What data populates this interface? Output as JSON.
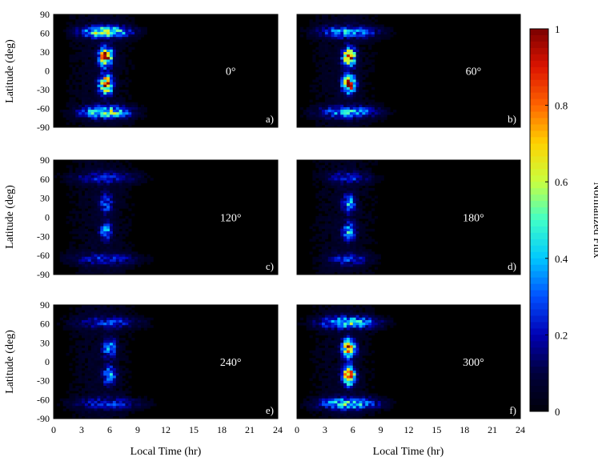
{
  "chart_data": {
    "type": "heatmap",
    "xlabel": "Local Time (hr)",
    "ylabel": "Latitude (deg)",
    "xlim": [
      0,
      24
    ],
    "ylim": [
      -90,
      90
    ],
    "xticks": [
      "0",
      "3",
      "6",
      "9",
      "12",
      "15",
      "18",
      "21",
      "24"
    ],
    "yticks": [
      "90",
      "60",
      "30",
      "0",
      "-30",
      "-60",
      "-90"
    ],
    "colorbar": {
      "label": "Normalized Flux",
      "range": [
        0,
        1
      ],
      "ticks": [
        "1",
        "0.8",
        "0.6",
        "0.4",
        "0.2",
        "0"
      ],
      "colors": [
        "#00000a",
        "#00003c",
        "#0000b4",
        "#0050ff",
        "#00c8ff",
        "#40ffc8",
        "#c8ff40",
        "#ffd200",
        "#ff6400",
        "#dc1400",
        "#7a0000"
      ]
    },
    "panels": [
      {
        "letter": "a)",
        "angle": "0°",
        "core_lt": 5.6,
        "core_peak": 0.95,
        "aurora_peak": 0.55,
        "aurora_spread": 2.5
      },
      {
        "letter": "b)",
        "angle": "60°",
        "core_lt": 5.6,
        "core_peak": 0.85,
        "aurora_peak": 0.35,
        "aurora_spread": 3.0
      },
      {
        "letter": "c)",
        "angle": "120°",
        "core_lt": 5.6,
        "core_peak": 0.3,
        "aurora_peak": 0.18,
        "aurora_spread": 3.5
      },
      {
        "letter": "d)",
        "angle": "180°",
        "core_lt": 5.6,
        "core_peak": 0.35,
        "aurora_peak": 0.2,
        "aurora_spread": 2.0
      },
      {
        "letter": "e)",
        "angle": "240°",
        "core_lt": 6.0,
        "core_peak": 0.4,
        "aurora_peak": 0.2,
        "aurora_spread": 3.5
      },
      {
        "letter": "f)",
        "angle": "300°",
        "core_lt": 5.6,
        "core_peak": 0.85,
        "aurora_peak": 0.45,
        "aurora_spread": 3.0
      }
    ]
  }
}
